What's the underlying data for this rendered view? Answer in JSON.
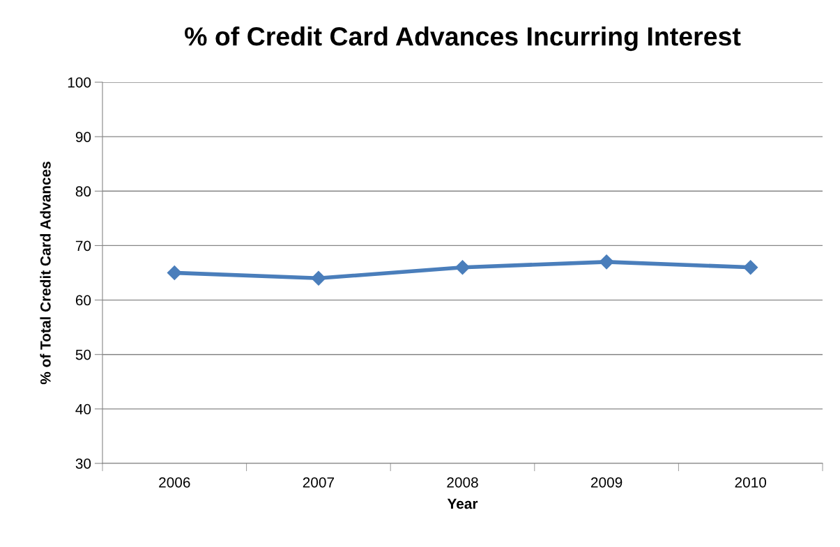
{
  "chart_data": {
    "type": "line",
    "title": "% of Credit Card Advances Incurring Interest",
    "xlabel": "Year",
    "ylabel": "% of Total Credit Card Advances",
    "categories": [
      "2006",
      "2007",
      "2008",
      "2009",
      "2010"
    ],
    "series": [
      {
        "color": "#4a7ebb",
        "values": [
          65,
          64,
          66,
          67,
          66
        ]
      }
    ],
    "ylim": [
      30,
      100
    ],
    "yticks": [
      30,
      40,
      50,
      60,
      70,
      80,
      90,
      100
    ],
    "grid": "y",
    "marker": "diamond",
    "line_style": "solid"
  }
}
